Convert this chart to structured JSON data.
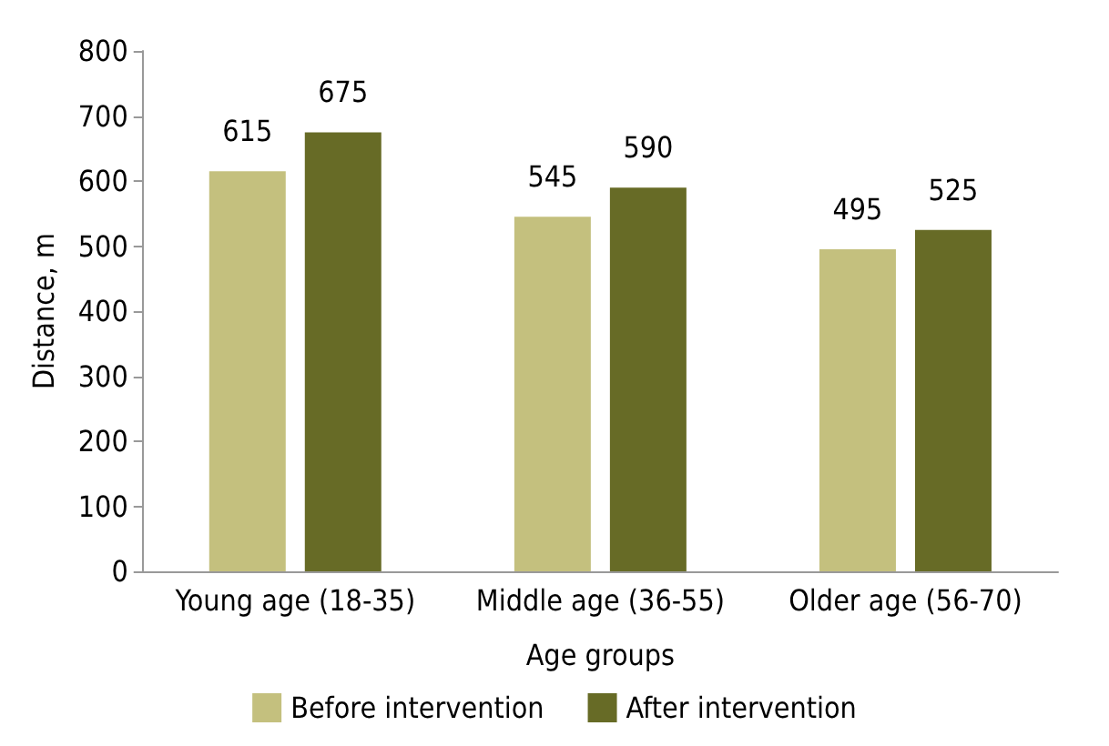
{
  "chart_data": {
    "type": "bar",
    "xlabel": "Age groups",
    "ylabel": "Distance, m",
    "categories": [
      "Young age (18-35)",
      "Middle age (36-55)",
      "Older age (56-70)"
    ],
    "series": [
      {
        "name": "Before intervention",
        "color": "#c4c07e",
        "values": [
          615,
          545,
          495
        ]
      },
      {
        "name": "After intervention",
        "color": "#676b26",
        "values": [
          675,
          590,
          525
        ]
      }
    ],
    "ylim": [
      0,
      800
    ],
    "yticks": [
      0,
      100,
      200,
      300,
      400,
      500,
      600,
      700,
      800
    ],
    "grid": false,
    "legend": "bottom",
    "data_labels": true
  }
}
